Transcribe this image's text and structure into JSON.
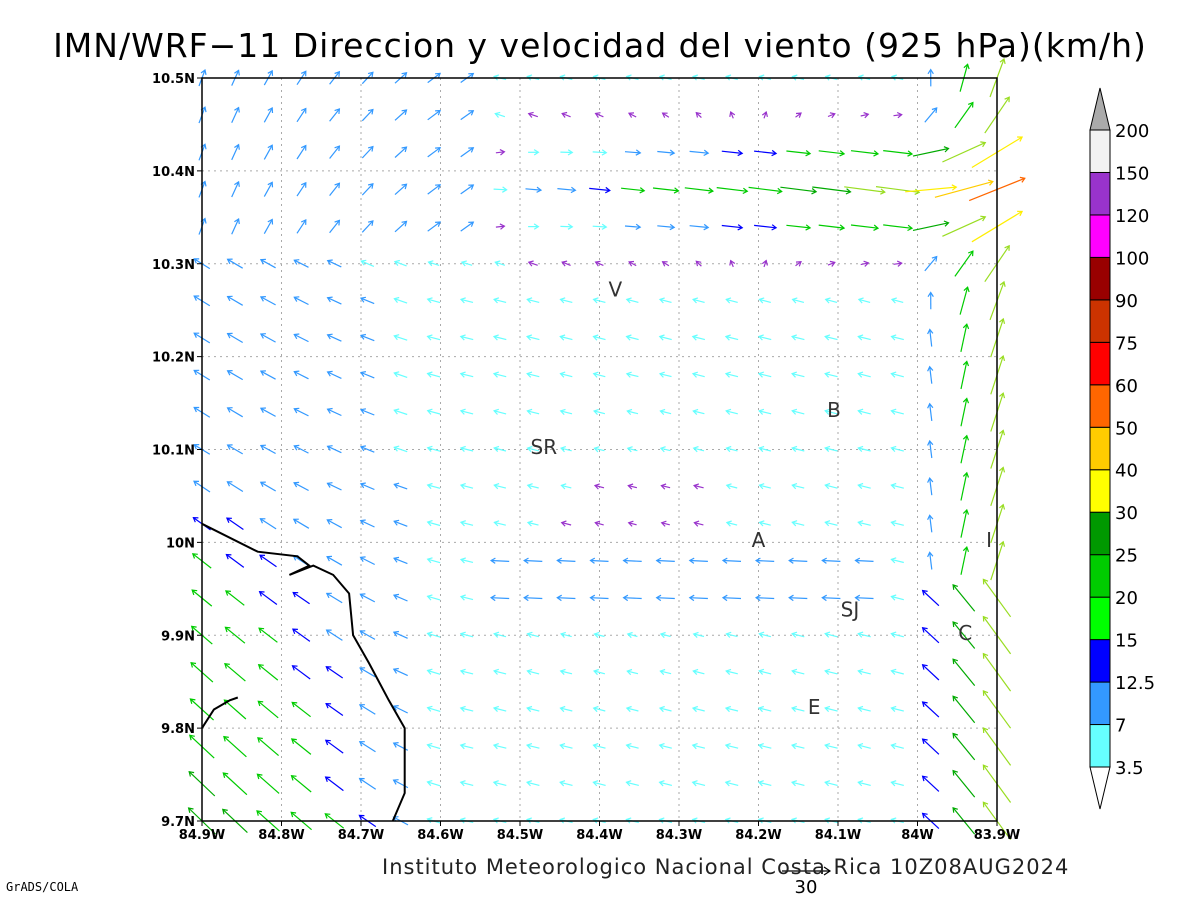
{
  "title": "IMN/WRF−11 Direccion y velocidad del viento (925 hPa)(km/h)",
  "footer": "Instituto Meteorologico Nacional Costa Rica 10Z08AUG2024",
  "software_label": "GrADS/COLA",
  "chart_data": {
    "type": "vector",
    "title": "IMN/WRF−11 Direccion y velocidad del viento (925 hPa)(km/h)",
    "x_ticks": [
      "84.9W",
      "84.8W",
      "84.7W",
      "84.6W",
      "84.5W",
      "84.4W",
      "84.3W",
      "84.2W",
      "84.1W",
      "84W",
      "83.9W"
    ],
    "y_ticks": [
      "10.5N",
      "10.4N",
      "10.3N",
      "10.2N",
      "10.1N",
      "10N",
      "9.9N",
      "9.8N",
      "9.7N"
    ],
    "xlim": [
      -84.9,
      -83.9
    ],
    "ylim": [
      9.7,
      10.5
    ],
    "grid": true,
    "reference_vector": {
      "label": "30",
      "speed": 30
    },
    "colorbar": {
      "levels": [
        "3.5",
        "7",
        "12.5",
        "15",
        "20",
        "25",
        "30",
        "40",
        "50",
        "60",
        "75",
        "90",
        "100",
        "120",
        "150",
        "200"
      ],
      "colors": [
        "#66ffff",
        "#3399ff",
        "#0000ff",
        "#00ff00",
        "#00cc00",
        "#009900",
        "#ffff00",
        "#ffcc00",
        "#ff6600",
        "#ff0000",
        "#cc3300",
        "#990000",
        "#ff00ff",
        "#ff00ff",
        "#9933cc",
        "#f2f2f2",
        "#aaaaaa"
      ]
    },
    "locations": [
      {
        "label": "V",
        "lon": -84.38,
        "lat": 10.265
      },
      {
        "label": "B",
        "lon": -84.105,
        "lat": 10.135
      },
      {
        "label": "SR",
        "lon": -84.47,
        "lat": 10.095
      },
      {
        "label": "A",
        "lon": -84.2,
        "lat": 9.995
      },
      {
        "label": "I",
        "lon": -83.91,
        "lat": 9.995
      },
      {
        "label": "SJ",
        "lon": -84.085,
        "lat": 9.92
      },
      {
        "label": "C",
        "lon": -83.94,
        "lat": 9.895
      },
      {
        "label": "E",
        "lon": -84.13,
        "lat": 9.815
      }
    ],
    "coastline": [
      [
        -84.9,
        10.02
      ],
      [
        -84.83,
        9.99
      ],
      [
        -84.78,
        9.985
      ],
      [
        -84.765,
        9.975
      ],
      [
        -84.79,
        9.965
      ],
      [
        -84.76,
        9.975
      ],
      [
        -84.735,
        9.965
      ],
      [
        -84.715,
        9.945
      ],
      [
        -84.71,
        9.9
      ],
      [
        -84.69,
        9.87
      ],
      [
        -84.665,
        9.83
      ],
      [
        -84.645,
        9.8
      ],
      [
        -84.645,
        9.73
      ],
      [
        -84.66,
        9.7
      ]
    ],
    "coastline_sw": [
      [
        -84.9,
        9.8
      ],
      [
        -84.885,
        9.82
      ],
      [
        -84.865,
        9.83
      ],
      [
        -84.855,
        9.833
      ]
    ]
  }
}
